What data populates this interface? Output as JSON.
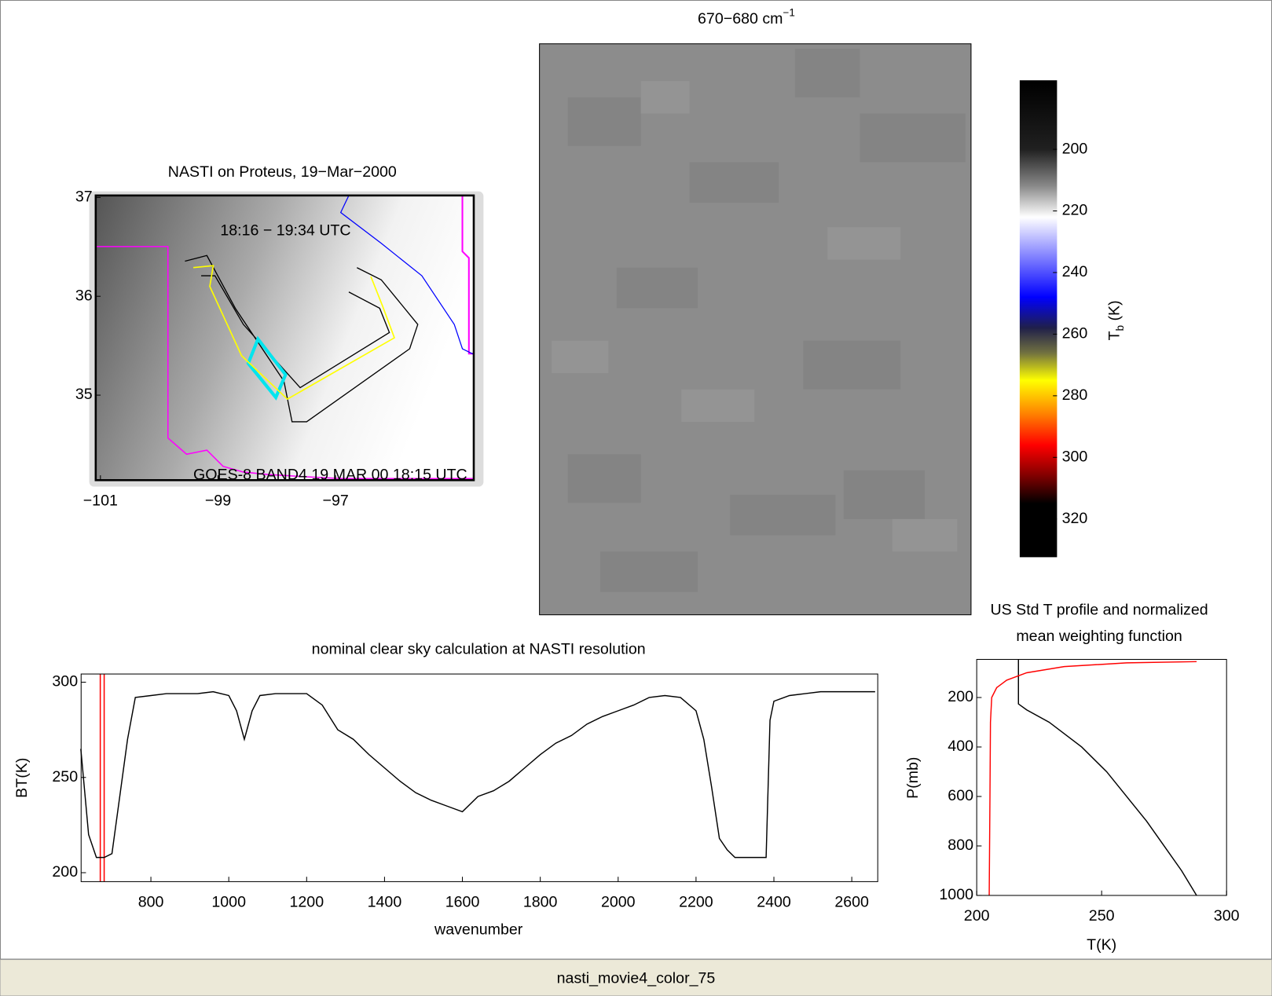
{
  "chart_data": [
    {
      "type": "map",
      "title": "NASTI on Proteus, 19−Mar−2000",
      "annotation": "18:16 − 19:34 UTC",
      "source_label": "GOES-8 BAND4 19 MAR 00 18:15 UTC",
      "xlim": [
        -101.08,
        -94.65
      ],
      "ylim": [
        34.14,
        37.02
      ],
      "xticks": [
        {
          "value": -101,
          "label": "−101"
        },
        {
          "value": -99,
          "label": "−99"
        },
        {
          "value": -97,
          "label": "−97"
        }
      ],
      "yticks": [
        35,
        36,
        37
      ],
      "series": [
        {
          "color": "#ffff00",
          "x": [
            -99.42,
            -99.08,
            -99.14,
            -98.6,
            -97.82,
            -96.0,
            -96.2,
            -96.4
          ],
          "values": [
            36.29,
            36.31,
            36.1,
            35.4,
            34.96,
            35.58,
            35.9,
            36.2
          ]
        }
      ]
    },
    {
      "type": "image",
      "title": "670−680 cm",
      "title_superscript": "−1",
      "colorbar_label": "T",
      "colorbar_label_subscript": "b",
      "colorbar_unit": "(K)",
      "ylim": [
        177.6,
        332.4
      ],
      "yreverse": true,
      "yticks": [
        200,
        220,
        240,
        260,
        280,
        300,
        320
      ],
      "colormap": [
        {
          "value": 178,
          "color": "#000000"
        },
        {
          "value": 200,
          "color": "#202020"
        },
        {
          "value": 212,
          "color": "#8a8a8a"
        },
        {
          "value": 222,
          "color": "#ffffff"
        },
        {
          "value": 235,
          "color": "#8080ff"
        },
        {
          "value": 248,
          "color": "#0000ff"
        },
        {
          "value": 258,
          "color": "#20204a"
        },
        {
          "value": 266,
          "color": "#707040"
        },
        {
          "value": 275,
          "color": "#ffff00"
        },
        {
          "value": 286,
          "color": "#ff8000"
        },
        {
          "value": 296,
          "color": "#ff0000"
        },
        {
          "value": 306,
          "color": "#800000"
        },
        {
          "value": 315,
          "color": "#000000"
        },
        {
          "value": 332,
          "color": "#000000"
        }
      ]
    },
    {
      "type": "line",
      "title": "nominal clear sky calculation at NASTI resolution",
      "xlabel": "wavenumber",
      "ylabel": "BT(K)",
      "xlim": [
        620.8,
        2666.7
      ],
      "ylim": [
        195.3,
        304.3
      ],
      "xticks": [
        800,
        1000,
        1200,
        1400,
        1600,
        1800,
        2000,
        2200,
        2400,
        2600
      ],
      "yticks": [
        200,
        250,
        300
      ],
      "vlines": [
        670,
        680
      ],
      "vline_color": "#ff0000",
      "series": [
        {
          "color": "#000000",
          "x": [
            620,
            640,
            660,
            680,
            700,
            720,
            740,
            760,
            800,
            840,
            880,
            920,
            960,
            1000,
            1020,
            1040,
            1060,
            1080,
            1120,
            1160,
            1200,
            1240,
            1280,
            1320,
            1360,
            1400,
            1440,
            1480,
            1520,
            1560,
            1600,
            1640,
            1680,
            1720,
            1760,
            1800,
            1840,
            1880,
            1920,
            1960,
            2000,
            2040,
            2080,
            2120,
            2160,
            2200,
            2220,
            2240,
            2260,
            2280,
            2300,
            2340,
            2380,
            2390,
            2400,
            2440,
            2480,
            2520,
            2560,
            2600,
            2640,
            2660
          ],
          "values": [
            265,
            220,
            208,
            208,
            210,
            240,
            270,
            292,
            293,
            294,
            294,
            294,
            295,
            293,
            285,
            270,
            285,
            293,
            294,
            294,
            294,
            288,
            275,
            270,
            262,
            255,
            248,
            242,
            238,
            235,
            232,
            240,
            243,
            248,
            255,
            262,
            268,
            272,
            278,
            282,
            285,
            288,
            292,
            293,
            292,
            285,
            270,
            245,
            218,
            212,
            208,
            208,
            208,
            280,
            290,
            293,
            294,
            295,
            295,
            295,
            295,
            295
          ]
        }
      ]
    },
    {
      "type": "line",
      "title": [
        "US Std T profile and normalized",
        "mean weighting function"
      ],
      "xlabel": "T(K)",
      "ylabel": "P(mb)",
      "xlim": [
        200,
        300
      ],
      "ylim": [
        46,
        1000
      ],
      "yreverse": true,
      "xticks": [
        200,
        250,
        300
      ],
      "yticks": [
        200,
        400,
        600,
        800,
        1000
      ],
      "series": [
        {
          "color": "#000000",
          "x": [
            216.7,
            216.7,
            220,
            229,
            242,
            252,
            260,
            268,
            275,
            282,
            288
          ],
          "values": [
            46,
            226,
            250,
            300,
            400,
            500,
            600,
            700,
            800,
            900,
            1000
          ]
        },
        {
          "color": "#ff0000",
          "x": [
            205,
            205.3,
            205.5,
            206,
            208,
            212,
            220,
            235,
            260,
            288
          ],
          "values": [
            1000,
            600,
            300,
            200,
            160,
            130,
            100,
            75,
            60,
            55
          ]
        }
      ]
    }
  ],
  "window": {
    "caption": "nasti_movie4_color_75"
  }
}
